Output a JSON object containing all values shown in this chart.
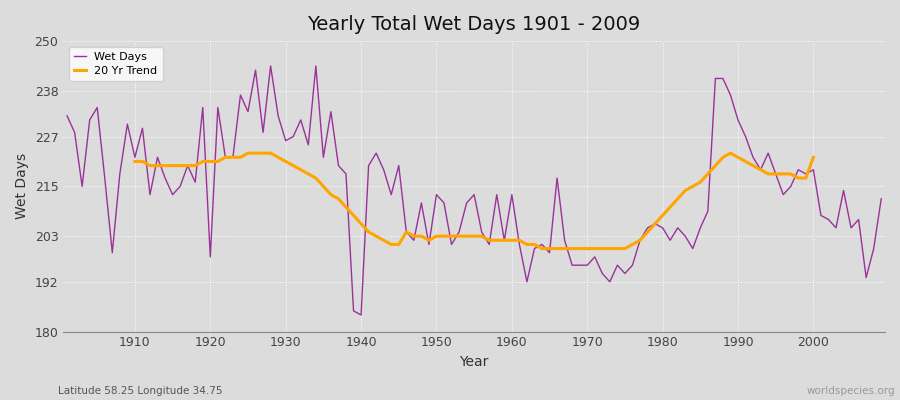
{
  "title": "Yearly Total Wet Days 1901 - 2009",
  "xlabel": "Year",
  "ylabel": "Wet Days",
  "subtitle": "Latitude 58.25 Longitude 34.75",
  "watermark": "worldspecies.org",
  "line_color": "#993399",
  "trend_color": "#FFA500",
  "bg_color": "#DCDCDC",
  "ylim": [
    180,
    250
  ],
  "yticks": [
    180,
    192,
    203,
    215,
    227,
    238,
    250
  ],
  "xlim_min": 1901,
  "xlim_max": 2009,
  "xticks": [
    1910,
    1920,
    1930,
    1940,
    1950,
    1960,
    1970,
    1980,
    1990,
    2000
  ],
  "years": [
    1901,
    1902,
    1903,
    1904,
    1905,
    1906,
    1907,
    1908,
    1909,
    1910,
    1911,
    1912,
    1913,
    1914,
    1915,
    1916,
    1917,
    1918,
    1919,
    1920,
    1921,
    1922,
    1923,
    1924,
    1925,
    1926,
    1927,
    1928,
    1929,
    1930,
    1931,
    1932,
    1933,
    1934,
    1935,
    1936,
    1937,
    1938,
    1939,
    1940,
    1941,
    1942,
    1943,
    1944,
    1945,
    1946,
    1947,
    1948,
    1949,
    1950,
    1951,
    1952,
    1953,
    1954,
    1955,
    1956,
    1957,
    1958,
    1959,
    1960,
    1961,
    1962,
    1963,
    1964,
    1965,
    1966,
    1967,
    1968,
    1969,
    1970,
    1971,
    1972,
    1973,
    1974,
    1975,
    1976,
    1977,
    1978,
    1979,
    1980,
    1981,
    1982,
    1983,
    1984,
    1985,
    1986,
    1987,
    1988,
    1989,
    1990,
    1991,
    1992,
    1993,
    1994,
    1995,
    1996,
    1997,
    1998,
    1999,
    2000,
    2001,
    2002,
    2003,
    2004,
    2005,
    2006,
    2007,
    2008,
    2009
  ],
  "wet_days": [
    232,
    228,
    215,
    231,
    234,
    217,
    199,
    218,
    230,
    222,
    229,
    213,
    222,
    217,
    213,
    215,
    220,
    216,
    234,
    198,
    234,
    222,
    222,
    237,
    233,
    243,
    228,
    244,
    232,
    226,
    227,
    231,
    225,
    244,
    222,
    233,
    220,
    218,
    185,
    184,
    220,
    223,
    219,
    213,
    220,
    204,
    202,
    211,
    201,
    213,
    211,
    201,
    204,
    211,
    213,
    204,
    201,
    213,
    202,
    213,
    201,
    192,
    200,
    201,
    199,
    217,
    202,
    196,
    196,
    196,
    198,
    194,
    192,
    196,
    194,
    196,
    202,
    205,
    206,
    205,
    202,
    205,
    203,
    200,
    205,
    209,
    241,
    241,
    237,
    231,
    227,
    222,
    219,
    223,
    218,
    213,
    215,
    219,
    218,
    219,
    208,
    207,
    205,
    214,
    205,
    207,
    193,
    200,
    212
  ],
  "trend": [
    null,
    null,
    null,
    null,
    null,
    null,
    null,
    null,
    null,
    221,
    221,
    220,
    220,
    220,
    220,
    220,
    220,
    220,
    221,
    221,
    221,
    222,
    222,
    222,
    223,
    223,
    223,
    223,
    222,
    221,
    220,
    219,
    218,
    217,
    215,
    213,
    212,
    210,
    208,
    206,
    204,
    203,
    202,
    201,
    201,
    204,
    203,
    203,
    202,
    203,
    203,
    203,
    203,
    203,
    203,
    203,
    202,
    202,
    202,
    202,
    202,
    201,
    201,
    200,
    200,
    200,
    200,
    200,
    200,
    200,
    200,
    200,
    200,
    200,
    200,
    201,
    202,
    204,
    206,
    208,
    210,
    212,
    214,
    215,
    216,
    218,
    220,
    222,
    223,
    222,
    221,
    220,
    219,
    218,
    218,
    218,
    218,
    217,
    217,
    222,
    null,
    null,
    null,
    null,
    null,
    null,
    null,
    null,
    null
  ]
}
